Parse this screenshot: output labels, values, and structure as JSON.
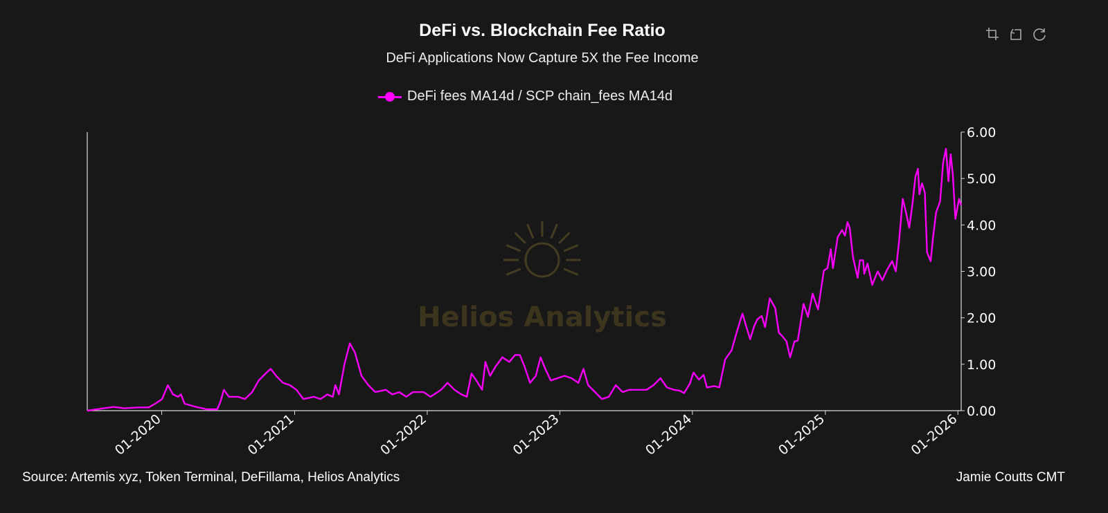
{
  "toolbar": {
    "icons": [
      "crop-icon",
      "undo-crop-icon",
      "refresh-icon"
    ]
  },
  "footer": {
    "source": "Source: Artemis xyz, Token Terminal, DeFillama, Helios Analytics",
    "author": "Jamie Coutts CMT"
  },
  "watermark": {
    "text": "Helios Analytics"
  },
  "chart_data": {
    "type": "line",
    "title": "DeFi vs. Blockchain Fee Ratio",
    "subtitle": "DeFi Applications Now Capture 5X the Fee Income",
    "legend_position": "top",
    "grid": false,
    "xlabel": "",
    "ylabel": "",
    "xlim": [
      "2019-06-10",
      "2026-01-10"
    ],
    "ylim": [
      0,
      6
    ],
    "y_axis_side": "right",
    "yticks": [
      "0.00",
      "1.00",
      "2.00",
      "3.00",
      "4.00",
      "5.00",
      "6.00"
    ],
    "xticks": [
      {
        "date": "2020-01-01",
        "label": "01-2020"
      },
      {
        "date": "2021-01-01",
        "label": "01-2021"
      },
      {
        "date": "2022-01-01",
        "label": "01-2022"
      },
      {
        "date": "2023-01-01",
        "label": "01-2023"
      },
      {
        "date": "2024-01-01",
        "label": "01-2024"
      },
      {
        "date": "2025-01-01",
        "label": "01-2025"
      },
      {
        "date": "2026-01-01",
        "label": "01-2026"
      }
    ],
    "series": [
      {
        "name": "DeFi fees MA14d / SCP chain_fees MA14d",
        "color": "#ff00ff",
        "points": [
          [
            "2019-06-10",
            0.0
          ],
          [
            "2019-07-25",
            0.05
          ],
          [
            "2019-08-22",
            0.08
          ],
          [
            "2019-09-20",
            0.05
          ],
          [
            "2019-10-27",
            0.07
          ],
          [
            "2019-11-26",
            0.07
          ],
          [
            "2019-12-14",
            0.15
          ],
          [
            "2020-01-02",
            0.25
          ],
          [
            "2020-01-18",
            0.55
          ],
          [
            "2020-02-01",
            0.35
          ],
          [
            "2020-02-15",
            0.3
          ],
          [
            "2020-02-23",
            0.35
          ],
          [
            "2020-03-04",
            0.15
          ],
          [
            "2020-04-05",
            0.08
          ],
          [
            "2020-05-04",
            0.03
          ],
          [
            "2020-06-02",
            0.03
          ],
          [
            "2020-06-11",
            0.2
          ],
          [
            "2020-06-20",
            0.45
          ],
          [
            "2020-07-04",
            0.3
          ],
          [
            "2020-07-29",
            0.3
          ],
          [
            "2020-08-17",
            0.25
          ],
          [
            "2020-09-06",
            0.4
          ],
          [
            "2020-09-24",
            0.65
          ],
          [
            "2020-10-13",
            0.8
          ],
          [
            "2020-10-27",
            0.9
          ],
          [
            "2020-11-11",
            0.75
          ],
          [
            "2020-11-30",
            0.6
          ],
          [
            "2020-12-19",
            0.55
          ],
          [
            "2021-01-06",
            0.45
          ],
          [
            "2021-01-25",
            0.25
          ],
          [
            "2021-02-23",
            0.3
          ],
          [
            "2021-03-13",
            0.25
          ],
          [
            "2021-04-01",
            0.35
          ],
          [
            "2021-04-16",
            0.3
          ],
          [
            "2021-04-23",
            0.55
          ],
          [
            "2021-05-03",
            0.35
          ],
          [
            "2021-05-18",
            1.0
          ],
          [
            "2021-06-02",
            1.45
          ],
          [
            "2021-06-16",
            1.25
          ],
          [
            "2021-07-04",
            0.75
          ],
          [
            "2021-07-23",
            0.55
          ],
          [
            "2021-08-11",
            0.4
          ],
          [
            "2021-09-09",
            0.45
          ],
          [
            "2021-09-27",
            0.35
          ],
          [
            "2021-10-16",
            0.4
          ],
          [
            "2021-11-04",
            0.3
          ],
          [
            "2021-11-23",
            0.4
          ],
          [
            "2021-12-22",
            0.4
          ],
          [
            "2022-01-10",
            0.3
          ],
          [
            "2022-02-08",
            0.45
          ],
          [
            "2022-02-26",
            0.6
          ],
          [
            "2022-03-17",
            0.45
          ],
          [
            "2022-04-05",
            0.35
          ],
          [
            "2022-04-20",
            0.3
          ],
          [
            "2022-05-03",
            0.8
          ],
          [
            "2022-05-16",
            0.65
          ],
          [
            "2022-06-01",
            0.45
          ],
          [
            "2022-06-10",
            1.05
          ],
          [
            "2022-06-23",
            0.75
          ],
          [
            "2022-07-08",
            0.95
          ],
          [
            "2022-07-27",
            1.15
          ],
          [
            "2022-08-15",
            1.05
          ],
          [
            "2022-08-31",
            1.2
          ],
          [
            "2022-09-13",
            1.2
          ],
          [
            "2022-09-26",
            0.95
          ],
          [
            "2022-10-11",
            0.6
          ],
          [
            "2022-10-27",
            0.75
          ],
          [
            "2022-11-09",
            1.15
          ],
          [
            "2022-11-22",
            0.9
          ],
          [
            "2022-12-07",
            0.65
          ],
          [
            "2022-12-26",
            0.7
          ],
          [
            "2023-01-14",
            0.75
          ],
          [
            "2023-02-02",
            0.7
          ],
          [
            "2023-02-21",
            0.6
          ],
          [
            "2023-03-07",
            0.9
          ],
          [
            "2023-03-20",
            0.55
          ],
          [
            "2023-04-08",
            0.4
          ],
          [
            "2023-04-27",
            0.25
          ],
          [
            "2023-05-16",
            0.3
          ],
          [
            "2023-06-04",
            0.55
          ],
          [
            "2023-06-23",
            0.4
          ],
          [
            "2023-07-11",
            0.45
          ],
          [
            "2023-07-30",
            0.45
          ],
          [
            "2023-08-28",
            0.45
          ],
          [
            "2023-09-16",
            0.55
          ],
          [
            "2023-10-05",
            0.7
          ],
          [
            "2023-10-23",
            0.5
          ],
          [
            "2023-11-11",
            0.45
          ],
          [
            "2023-11-27",
            0.43
          ],
          [
            "2023-12-09",
            0.38
          ],
          [
            "2023-12-25",
            0.58
          ],
          [
            "2024-01-04",
            0.82
          ],
          [
            "2024-01-19",
            0.67
          ],
          [
            "2024-02-01",
            0.77
          ],
          [
            "2024-02-10",
            0.5
          ],
          [
            "2024-03-01",
            0.53
          ],
          [
            "2024-03-15",
            0.5
          ],
          [
            "2024-03-31",
            1.1
          ],
          [
            "2024-04-18",
            1.3
          ],
          [
            "2024-05-01",
            1.66
          ],
          [
            "2024-05-13",
            1.97
          ],
          [
            "2024-05-18",
            2.09
          ],
          [
            "2024-05-28",
            1.82
          ],
          [
            "2024-06-08",
            1.54
          ],
          [
            "2024-06-19",
            1.82
          ],
          [
            "2024-06-28",
            1.97
          ],
          [
            "2024-07-10",
            2.04
          ],
          [
            "2024-07-19",
            1.8
          ],
          [
            "2024-08-01",
            2.42
          ],
          [
            "2024-08-16",
            2.21
          ],
          [
            "2024-08-26",
            1.68
          ],
          [
            "2024-09-04",
            1.61
          ],
          [
            "2024-09-16",
            1.49
          ],
          [
            "2024-09-26",
            1.15
          ],
          [
            "2024-10-08",
            1.49
          ],
          [
            "2024-10-17",
            1.51
          ],
          [
            "2024-11-02",
            2.3
          ],
          [
            "2024-11-14",
            2.02
          ],
          [
            "2024-11-27",
            2.52
          ],
          [
            "2024-12-12",
            2.18
          ],
          [
            "2024-12-28",
            3.02
          ],
          [
            "2025-01-07",
            3.07
          ],
          [
            "2025-01-16",
            3.48
          ],
          [
            "2025-01-22",
            3.07
          ],
          [
            "2025-02-04",
            3.74
          ],
          [
            "2025-02-16",
            3.89
          ],
          [
            "2025-02-24",
            3.77
          ],
          [
            "2025-03-03",
            4.06
          ],
          [
            "2025-03-09",
            3.94
          ],
          [
            "2025-03-18",
            3.31
          ],
          [
            "2025-03-31",
            2.86
          ],
          [
            "2025-04-06",
            3.24
          ],
          [
            "2025-04-15",
            3.24
          ],
          [
            "2025-04-18",
            2.95
          ],
          [
            "2025-04-27",
            3.17
          ],
          [
            "2025-05-10",
            2.71
          ],
          [
            "2025-05-25",
            3.0
          ],
          [
            "2025-06-07",
            2.81
          ],
          [
            "2025-06-19",
            3.02
          ],
          [
            "2025-07-04",
            3.22
          ],
          [
            "2025-07-14",
            3.0
          ],
          [
            "2025-07-23",
            3.65
          ],
          [
            "2025-08-02",
            4.56
          ],
          [
            "2025-08-11",
            4.27
          ],
          [
            "2025-08-20",
            3.94
          ],
          [
            "2025-08-29",
            4.46
          ],
          [
            "2025-09-06",
            5.04
          ],
          [
            "2025-09-13",
            5.21
          ],
          [
            "2025-09-17",
            4.66
          ],
          [
            "2025-09-24",
            4.9
          ],
          [
            "2025-10-02",
            4.7
          ],
          [
            "2025-10-08",
            3.41
          ],
          [
            "2025-10-18",
            3.22
          ],
          [
            "2025-10-24",
            3.7
          ],
          [
            "2025-11-02",
            4.27
          ],
          [
            "2025-11-13",
            4.51
          ],
          [
            "2025-11-21",
            5.33
          ],
          [
            "2025-11-29",
            5.64
          ],
          [
            "2025-12-06",
            4.94
          ],
          [
            "2025-12-12",
            5.52
          ],
          [
            "2025-12-18",
            5.09
          ],
          [
            "2025-12-25",
            4.13
          ],
          [
            "2026-01-04",
            4.56
          ],
          [
            "2026-01-10",
            4.42
          ]
        ]
      }
    ]
  }
}
